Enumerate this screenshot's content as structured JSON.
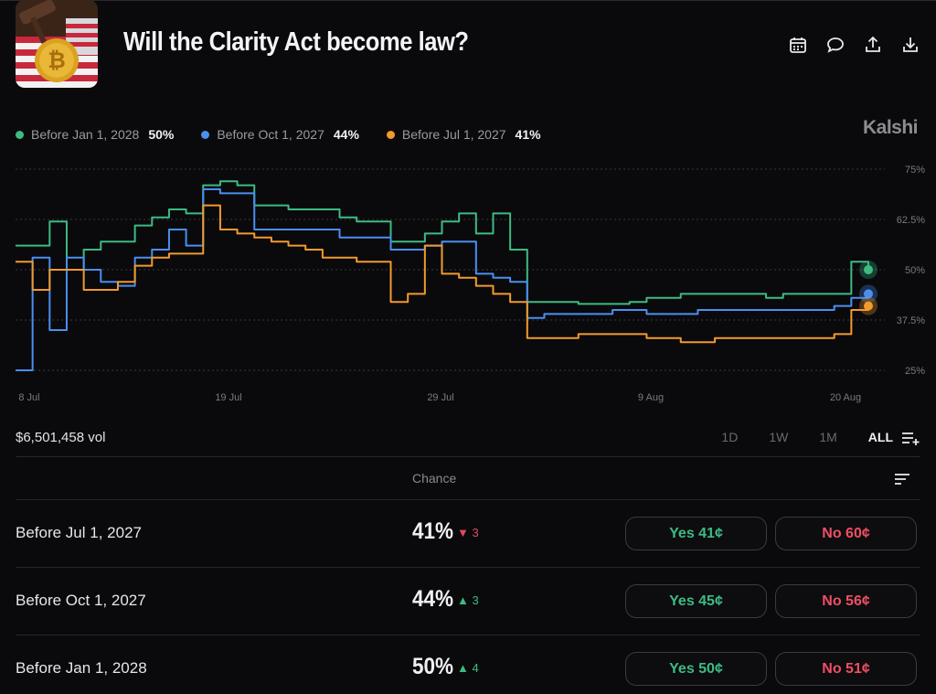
{
  "header": {
    "title": "Will the Clarity Act become law?",
    "icons": [
      "calendar-icon",
      "comment-icon",
      "share-icon",
      "download-icon"
    ]
  },
  "legend": [
    {
      "label": "Before Jan 1, 2028",
      "value": "50%",
      "color": "#3dbb83"
    },
    {
      "label": "Before Oct 1, 2027",
      "value": "44%",
      "color": "#4a8ff0"
    },
    {
      "label": "Before Jul 1, 2027",
      "value": "41%",
      "color": "#f29a2e"
    }
  ],
  "brand": "Kalshi",
  "chart_data": {
    "type": "line",
    "y_ticks": [
      "75%",
      "62.5%",
      "50%",
      "37.5%",
      "25%"
    ],
    "ylim": [
      25,
      75
    ],
    "x_ticks": [
      "8 Jul",
      "19 Jul",
      "29 Jul",
      "9 Aug",
      "20 Aug"
    ],
    "x": [
      0,
      2,
      4,
      6,
      8,
      10,
      12,
      14,
      16,
      18,
      20,
      22,
      24,
      26,
      28,
      30,
      32,
      34,
      36,
      38,
      40,
      42,
      44,
      46,
      48,
      50,
      52,
      54,
      56,
      58,
      60,
      62,
      64,
      66,
      68,
      70,
      72,
      74,
      76,
      78,
      80,
      82,
      84,
      86,
      88,
      90,
      92,
      94,
      96,
      98,
      100
    ],
    "series": [
      {
        "name": "Before Jan 1, 2028",
        "color": "#3dbb83",
        "values": [
          56,
          56,
          62,
          50,
          55,
          57,
          57,
          61,
          63,
          65,
          64,
          71,
          72,
          71,
          66,
          66,
          65,
          65,
          65,
          63,
          62,
          62,
          57,
          57,
          59,
          62,
          64,
          59,
          64,
          55,
          42,
          42,
          42,
          41.5,
          41.5,
          41.5,
          42,
          43,
          43,
          44,
          44,
          44,
          44,
          44,
          43,
          44,
          44,
          44,
          44,
          52,
          50
        ]
      },
      {
        "name": "Before Oct 1, 2027",
        "color": "#4a8ff0",
        "values": [
          25,
          53,
          35,
          53,
          50,
          47,
          46,
          53,
          55,
          60,
          56,
          70,
          69,
          69,
          60,
          60,
          60,
          60,
          60,
          58,
          58,
          58,
          55,
          55,
          56,
          57,
          57,
          49,
          48,
          47,
          38,
          39,
          39,
          39,
          39,
          40,
          40,
          39,
          39,
          39,
          40,
          40,
          40,
          40,
          40,
          40,
          40,
          40,
          41,
          43,
          44
        ]
      },
      {
        "name": "Before Jul 1, 2027",
        "color": "#f29a2e",
        "values": [
          52,
          45,
          50,
          50,
          45,
          45,
          47,
          51,
          53,
          54,
          54,
          66,
          60,
          59,
          58,
          57,
          56,
          55,
          53,
          53,
          52,
          52,
          42,
          44,
          56,
          49,
          48,
          46,
          44,
          42,
          33,
          33,
          33,
          34,
          34,
          34,
          34,
          33,
          33,
          32,
          32,
          33,
          33,
          33,
          33,
          33,
          33,
          33,
          34,
          40,
          41
        ]
      }
    ]
  },
  "volume": "$6,501,458 vol",
  "ranges": [
    {
      "label": "1D",
      "active": false
    },
    {
      "label": "1W",
      "active": false
    },
    {
      "label": "1M",
      "active": false
    },
    {
      "label": "ALL",
      "active": true
    }
  ],
  "table": {
    "chance_header": "Chance",
    "rows": [
      {
        "label": "Before Jul 1, 2027",
        "pct": "41%",
        "change": "3",
        "direction": "down",
        "yes": "Yes 41¢",
        "no": "No 60¢"
      },
      {
        "label": "Before Oct 1, 2027",
        "pct": "44%",
        "change": "3",
        "direction": "up",
        "yes": "Yes 45¢",
        "no": "No 56¢"
      },
      {
        "label": "Before Jan 1, 2028",
        "pct": "50%",
        "change": "4",
        "direction": "up",
        "yes": "Yes 50¢",
        "no": "No 51¢"
      }
    ]
  }
}
